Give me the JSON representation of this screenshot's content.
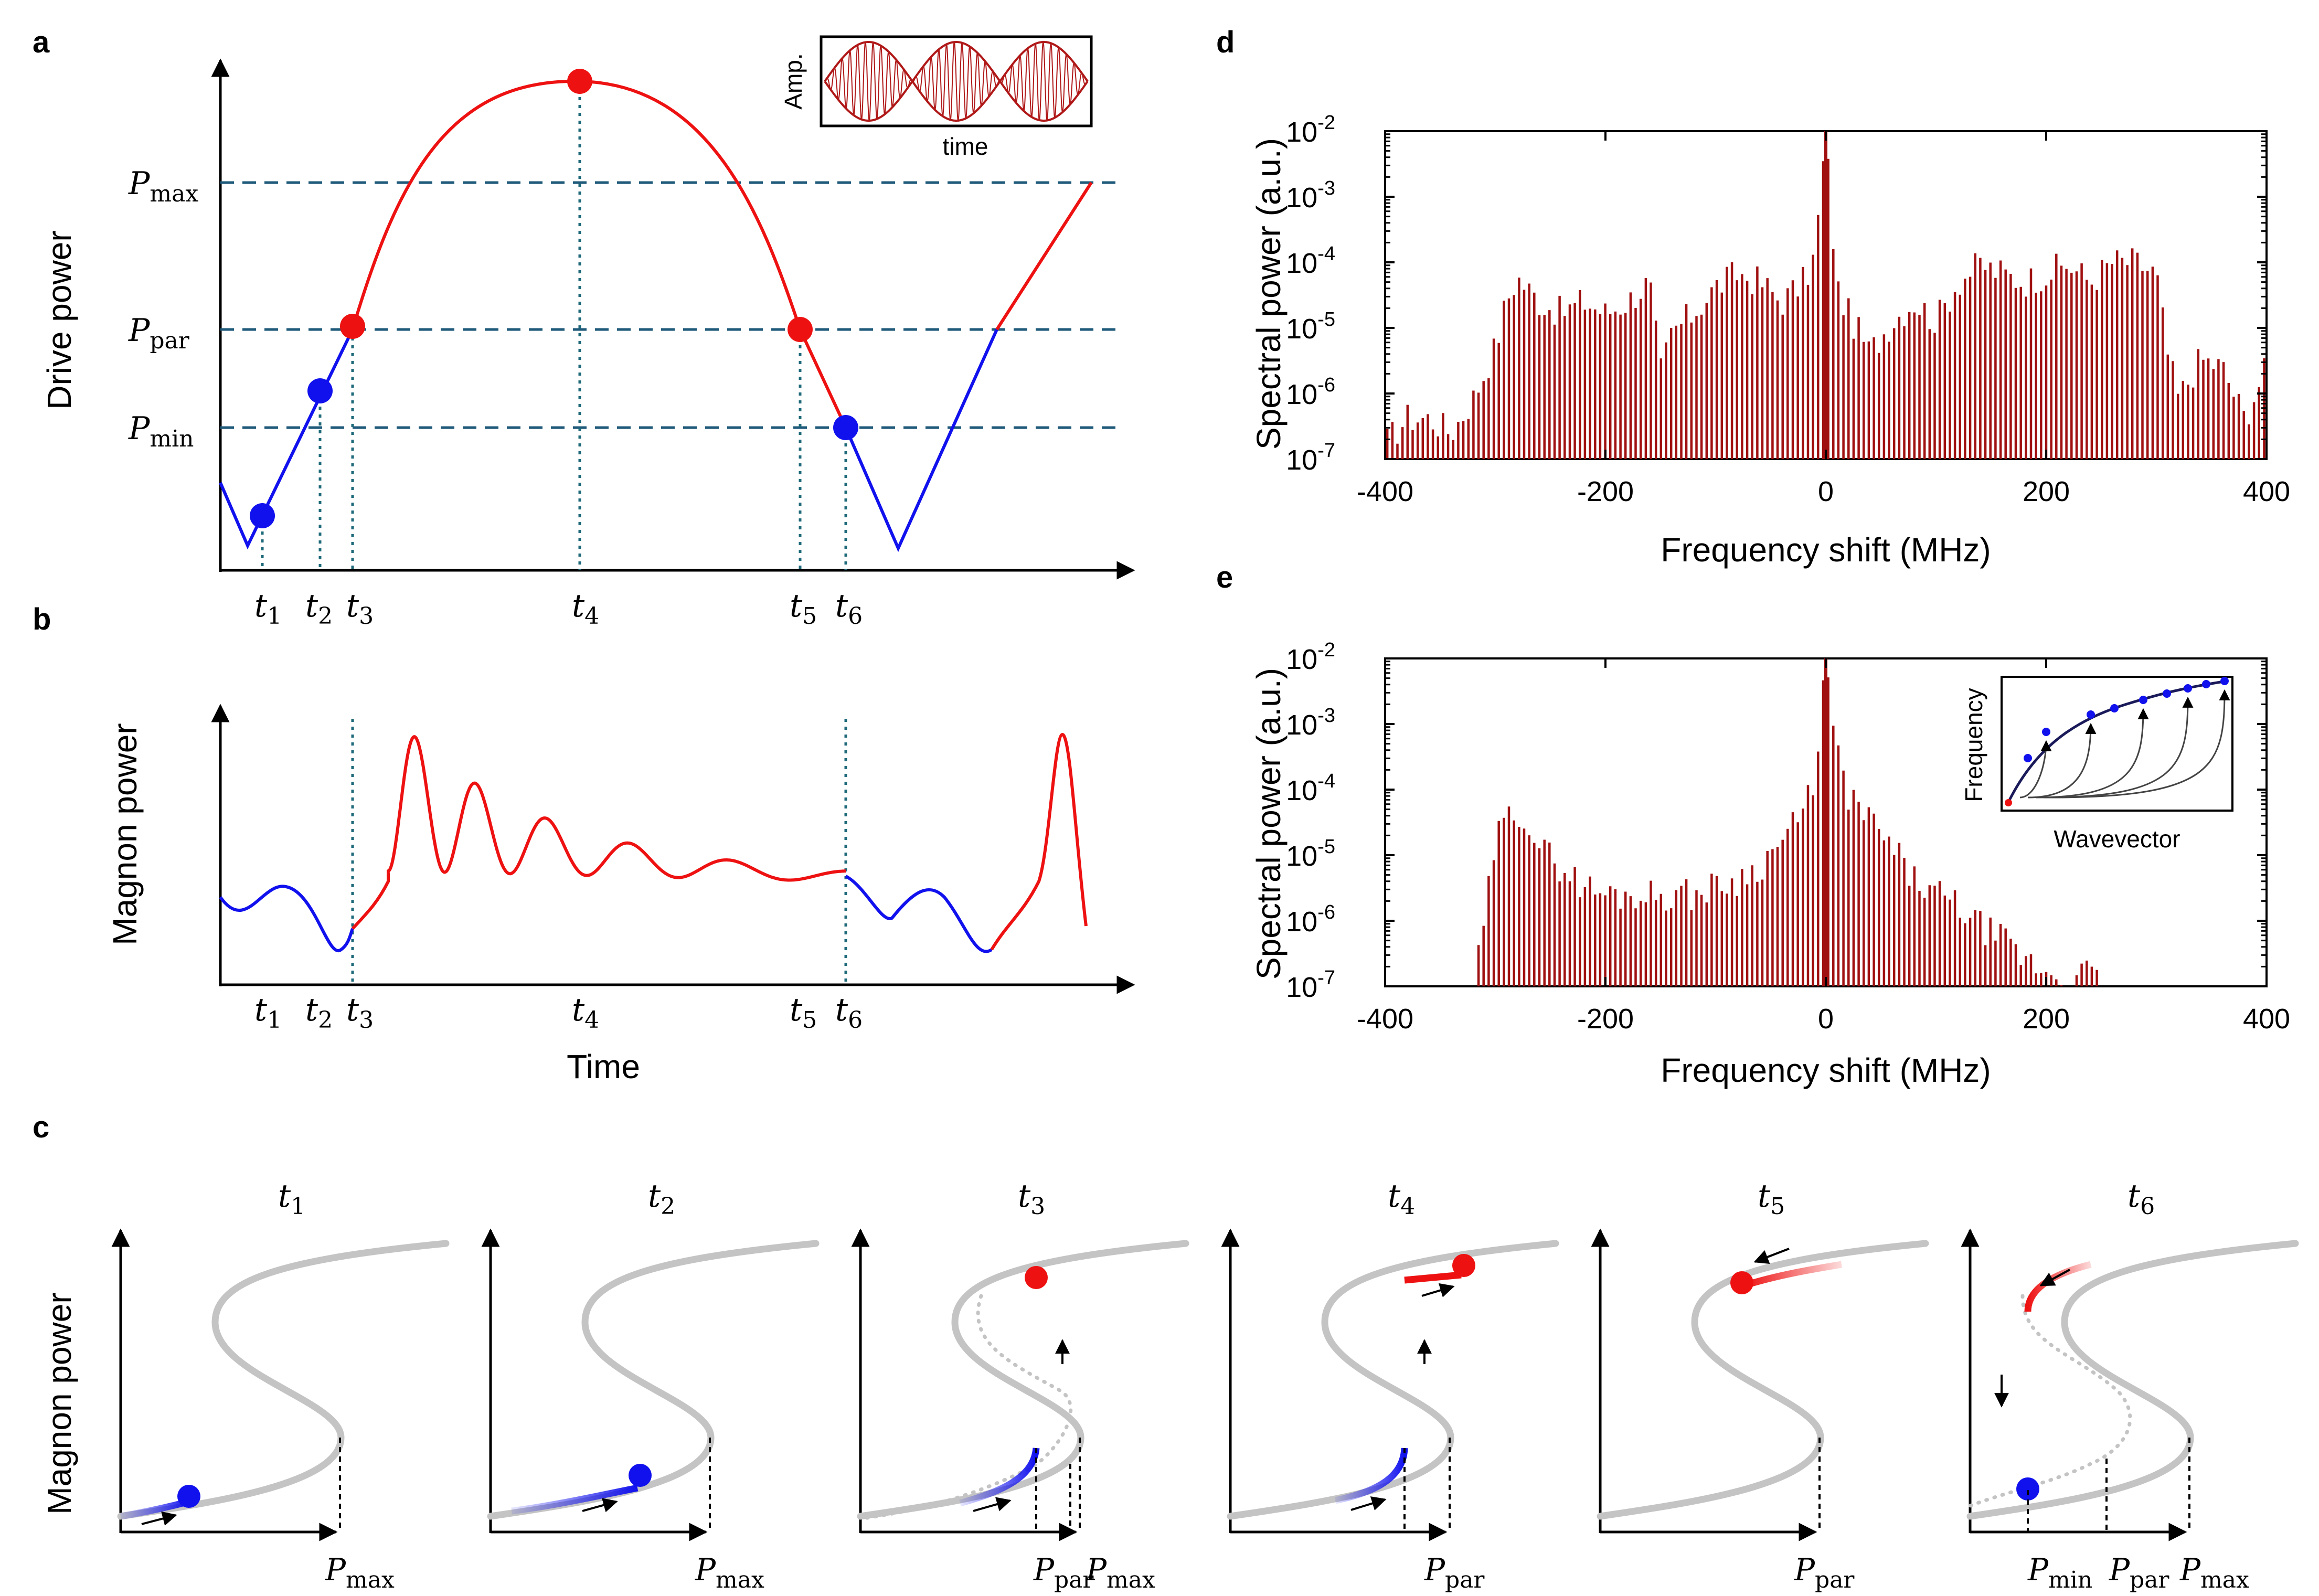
{
  "panels": {
    "a": {
      "letter": "a",
      "ylabel": "Drive  power",
      "levels": [
        {
          "sym": "P",
          "sub": "max"
        },
        {
          "sym": "P",
          "sub": "par"
        },
        {
          "sym": "P",
          "sub": "min"
        }
      ],
      "times": [
        {
          "sym": "t",
          "sub": "1"
        },
        {
          "sym": "t",
          "sub": "2"
        },
        {
          "sym": "t",
          "sub": "3"
        },
        {
          "sym": "t",
          "sub": "4"
        },
        {
          "sym": "t",
          "sub": "5"
        },
        {
          "sym": "t",
          "sub": "6"
        }
      ],
      "inset": {
        "ylabel": "Amp.",
        "xlabel": "time"
      }
    },
    "b": {
      "letter": "b",
      "ylabel": "Magnon power",
      "xlabel": "Time",
      "times": [
        {
          "sym": "t",
          "sub": "1"
        },
        {
          "sym": "t",
          "sub": "2"
        },
        {
          "sym": "t",
          "sub": "3"
        },
        {
          "sym": "t",
          "sub": "4"
        },
        {
          "sym": "t",
          "sub": "5"
        },
        {
          "sym": "t",
          "sub": "6"
        }
      ]
    },
    "c": {
      "letter": "c",
      "ylabel": "Magnon power",
      "subplots": [
        {
          "title": {
            "sym": "t",
            "sub": "1"
          },
          "labels": [
            {
              "sym": "P",
              "sub": "max"
            }
          ]
        },
        {
          "title": {
            "sym": "t",
            "sub": "2"
          },
          "labels": [
            {
              "sym": "P",
              "sub": "max"
            }
          ]
        },
        {
          "title": {
            "sym": "t",
            "sub": "3"
          },
          "labels": [
            {
              "sym": "P",
              "sub": "par"
            },
            {
              "sym": "P",
              "sub": "max"
            }
          ]
        },
        {
          "title": {
            "sym": "t",
            "sub": "4"
          },
          "labels": [
            {
              "sym": "P",
              "sub": "par"
            }
          ]
        },
        {
          "title": {
            "sym": "t",
            "sub": "5"
          },
          "labels": [
            {
              "sym": "P",
              "sub": "par"
            }
          ]
        },
        {
          "title": {
            "sym": "t",
            "sub": "6"
          },
          "labels": [
            {
              "sym": "P",
              "sub": "min"
            },
            {
              "sym": "P",
              "sub": "par"
            },
            {
              "sym": "P",
              "sub": "max"
            }
          ]
        }
      ]
    },
    "d": {
      "letter": "d",
      "ylabel": "Spectral power (a.u.)",
      "xlabel": "Frequency shift (MHz)",
      "xticks": [
        "-400",
        "-200",
        "0",
        "200",
        "400"
      ],
      "yticks": [
        {
          "base": "10",
          "exp": "-2"
        },
        {
          "base": "10",
          "exp": "-3"
        },
        {
          "base": "10",
          "exp": "-4"
        },
        {
          "base": "10",
          "exp": "-5"
        },
        {
          "base": "10",
          "exp": "-6"
        },
        {
          "base": "10",
          "exp": "-7"
        }
      ]
    },
    "e": {
      "letter": "e",
      "ylabel": "Spectral power (a.u.)",
      "xlabel": "Frequency shift (MHz)",
      "xticks": [
        "-400",
        "-200",
        "0",
        "200",
        "400"
      ],
      "yticks": [
        {
          "base": "10",
          "exp": "-2"
        },
        {
          "base": "10",
          "exp": "-3"
        },
        {
          "base": "10",
          "exp": "-4"
        },
        {
          "base": "10",
          "exp": "-5"
        },
        {
          "base": "10",
          "exp": "-6"
        },
        {
          "base": "10",
          "exp": "-7"
        }
      ],
      "inset": {
        "ylabel": "Frequency",
        "xlabel": "Wavevector"
      }
    }
  },
  "colors": {
    "red": "#ee1111",
    "blue": "#1111ee",
    "bar": "#a01010",
    "dashed": "#1f5a7a",
    "gray": "#c0c0c0"
  },
  "chart_data": [
    {
      "type": "bar",
      "panel": "d",
      "xlabel": "Frequency shift (MHz)",
      "ylabel": "Spectral power (a.u.)",
      "xlim": [
        -400,
        400
      ],
      "ylim": [
        1e-07,
        0.01
      ],
      "yscale": "log",
      "envelope_x": [
        -400,
        -380,
        -360,
        -340,
        -320,
        -300,
        -290,
        -280,
        -260,
        -240,
        -220,
        -200,
        -180,
        -160,
        -150,
        -140,
        -120,
        -100,
        -80,
        -60,
        -40,
        -20,
        -10,
        0,
        10,
        20,
        40,
        60,
        80,
        100,
        120,
        140,
        160,
        180,
        200,
        220,
        240,
        260,
        280,
        300,
        310,
        320,
        340,
        360,
        380,
        400
      ],
      "envelope_y": [
        2e-07,
        5e-07,
        5e-07,
        3e-07,
        1e-06,
        6e-06,
        3e-05,
        7e-05,
        3e-05,
        2e-05,
        3e-05,
        2e-05,
        3e-05,
        6e-05,
        2.5e-06,
        1e-05,
        2e-05,
        5e-05,
        8e-05,
        6e-05,
        3e-05,
        6e-05,
        0.00015,
        0.01,
        5e-05,
        2e-05,
        5e-06,
        1.5e-05,
        3e-05,
        1.5e-05,
        6e-05,
        0.00011,
        8e-05,
        6e-05,
        8e-05,
        0.00011,
        6e-05,
        0.00012,
        0.00012,
        8e-05,
        5e-06,
        1e-06,
        4e-06,
        3e-06,
        5e-07,
        3e-06
      ]
    },
    {
      "type": "bar",
      "panel": "e",
      "xlabel": "Frequency shift (MHz)",
      "ylabel": "Spectral power (a.u.)",
      "xlim": [
        -400,
        400
      ],
      "ylim": [
        1e-07,
        0.01
      ],
      "yscale": "log",
      "envelope_x": [
        -320,
        -310,
        -300,
        -290,
        -280,
        -270,
        -260,
        -240,
        -220,
        -200,
        -180,
        -160,
        -140,
        -120,
        -100,
        -80,
        -60,
        -40,
        -20,
        -10,
        0,
        10,
        20,
        40,
        60,
        80,
        100,
        120,
        140,
        160,
        180,
        200,
        220,
        240,
        250
      ],
      "envelope_y": [
        1e-07,
        1e-06,
        2e-05,
        4e-05,
        6e-05,
        4e-05,
        1.5e-05,
        8e-06,
        4e-06,
        3e-06,
        3e-06,
        3e-06,
        3e-06,
        3e-06,
        4e-06,
        5e-06,
        8e-06,
        2e-05,
        5e-05,
        0.0002,
        0.01,
        0.0004,
        0.0001,
        4e-05,
        1.5e-05,
        5e-06,
        3e-06,
        2e-06,
        1e-06,
        6e-07,
        3e-07,
        2e-07,
        1.5e-07,
        2e-07,
        1e-07
      ]
    }
  ]
}
